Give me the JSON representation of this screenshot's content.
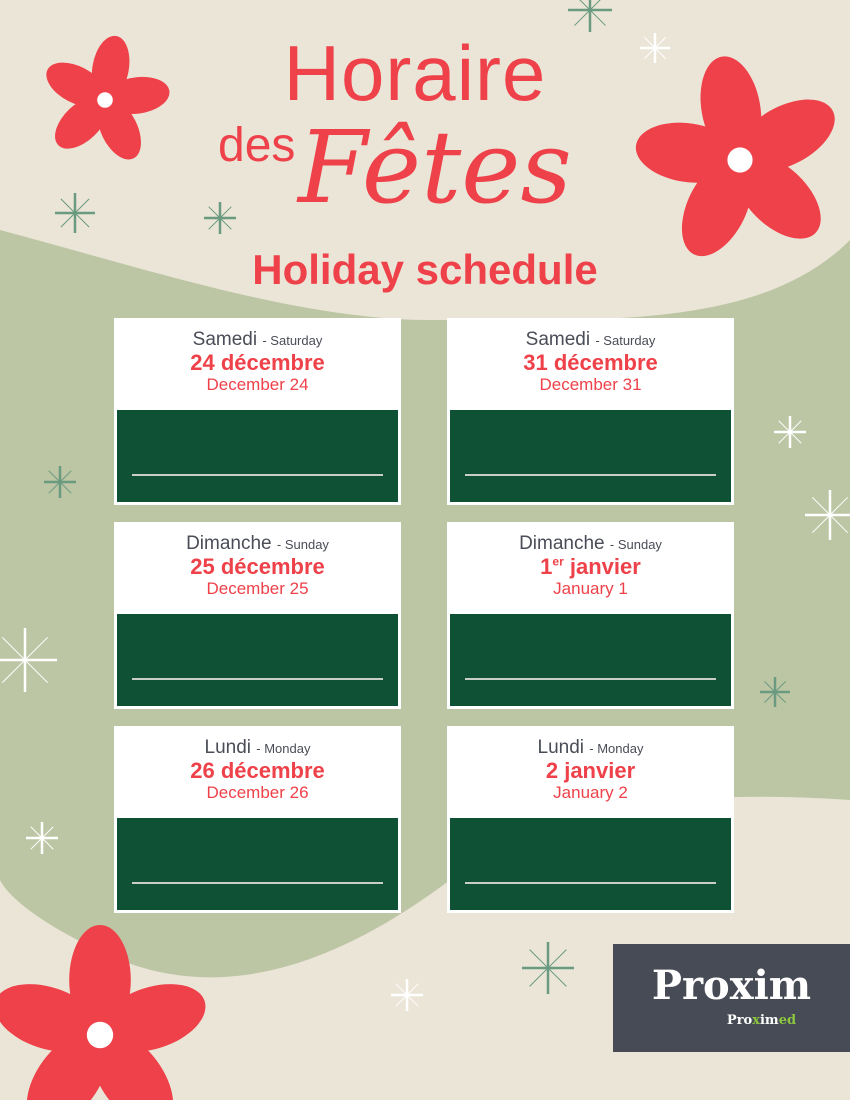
{
  "header": {
    "line1": "Horaire",
    "line2a": "des",
    "line2b": "Fêtes",
    "line3": "Holiday schedule"
  },
  "cards": [
    {
      "day_fr": "Samedi",
      "day_en": "- Saturday",
      "date_fr": "24 décembre",
      "date_en": "December 24"
    },
    {
      "day_fr": "Samedi",
      "day_en": "- Saturday",
      "date_fr": "31 décembre",
      "date_en": "December 31"
    },
    {
      "day_fr": "Dimanche",
      "day_en": "- Sunday",
      "date_fr": "25 décembre",
      "date_en": "December 25"
    },
    {
      "day_fr": "Dimanche",
      "day_en": "- Sunday",
      "date_fr_num": "1",
      "date_fr_sup": "er",
      "date_fr": " janvier",
      "date_en": "January 1"
    },
    {
      "day_fr": "Lundi",
      "day_en": "- Monday",
      "date_fr": "26 décembre",
      "date_en": "December 26"
    },
    {
      "day_fr": "Lundi",
      "day_en": "- Monday",
      "date_fr": "2 janvier",
      "date_en": "January 2"
    }
  ],
  "logo": {
    "brand": "Proxim",
    "sub_a": "Pro",
    "sub_b": "x",
    "sub_c": "im",
    "sub_d": "ed"
  },
  "colors": {
    "red": "#ee4149",
    "green": "#0f5135",
    "sage": "#bcc6a4",
    "beige": "#ebe5d8"
  }
}
